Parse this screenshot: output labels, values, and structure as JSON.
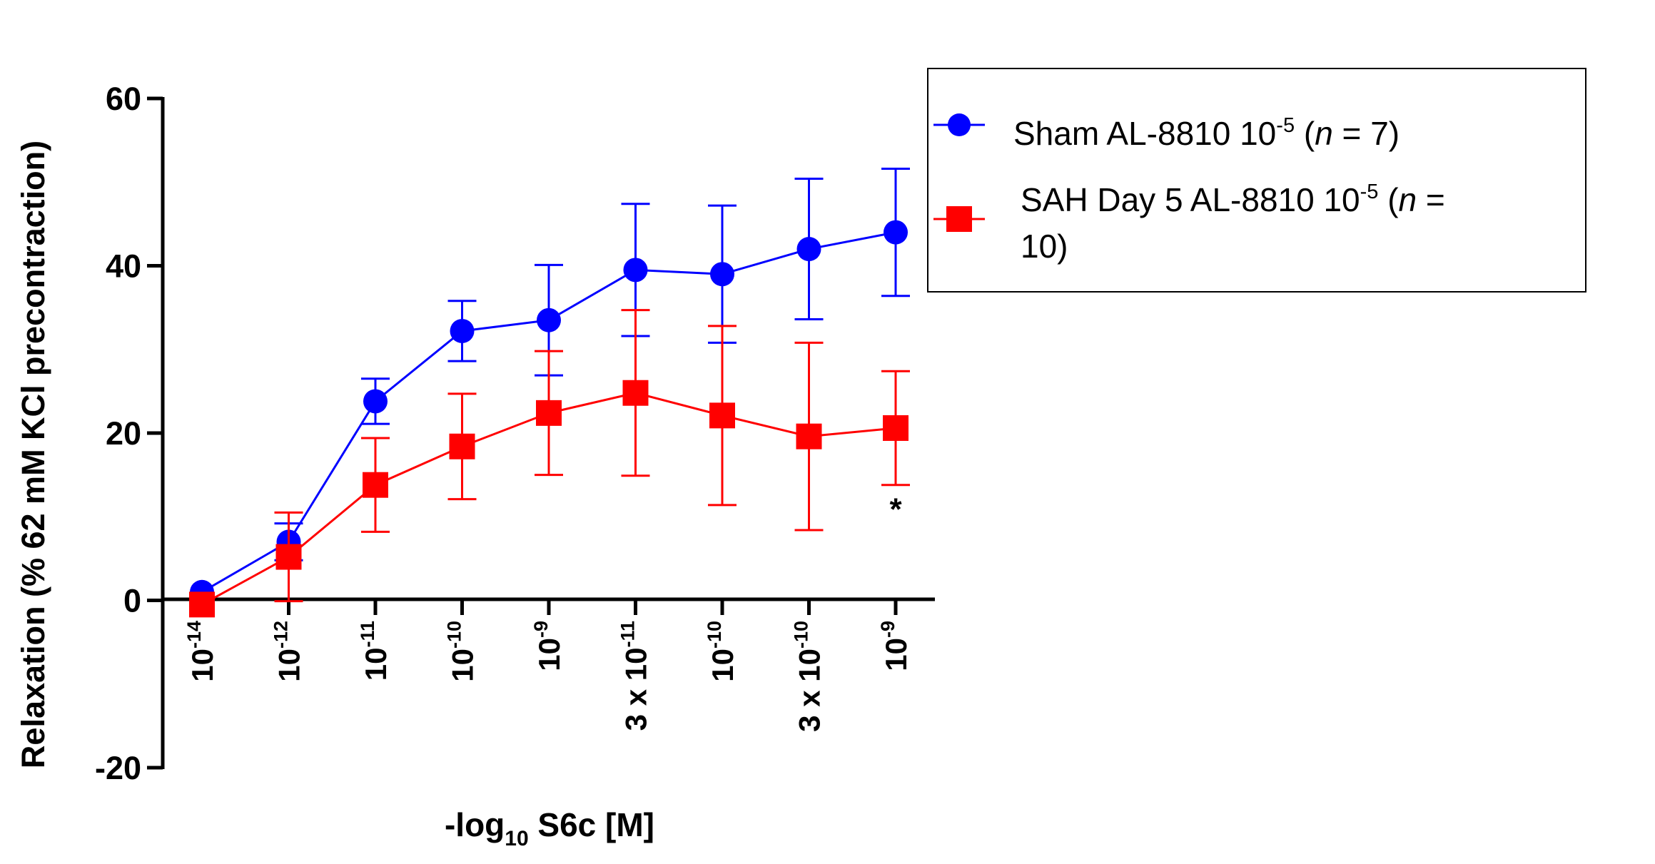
{
  "chart_data": {
    "type": "line",
    "ylabel": "Relaxation (% 62 mM KCl precontraction)",
    "xlabel": {
      "prefix": "-log",
      "sub": "10",
      "suffix": " S6c [M]"
    },
    "ylim": [
      -20,
      60
    ],
    "yticks": [
      -20,
      0,
      20,
      40,
      60
    ],
    "grid": false,
    "legend_position": "top-right",
    "x_tick_labels": [
      {
        "prefix": "",
        "base": "10",
        "exp": "-14"
      },
      {
        "prefix": "",
        "base": "10",
        "exp": "-12"
      },
      {
        "prefix": "",
        "base": "10",
        "exp": "-11"
      },
      {
        "prefix": "",
        "base": "10",
        "exp": "-10"
      },
      {
        "prefix": "",
        "base": "10",
        "exp": "-9"
      },
      {
        "prefix": "3 x ",
        "base": "10",
        "exp": "-11"
      },
      {
        "prefix": "",
        "base": "10",
        "exp": "-10"
      },
      {
        "prefix": "3 x ",
        "base": "10",
        "exp": "-10"
      },
      {
        "prefix": "",
        "base": "10",
        "exp": "-9"
      }
    ],
    "series": [
      {
        "name_parts": {
          "lead": "Sham AL-8810 10",
          "sup": "-5",
          "mid": " (",
          "ital": "n",
          "tail": " = 7)"
        },
        "color": "#0000ff",
        "marker": "circle",
        "values": [
          1.0,
          7.0,
          23.8,
          32.2,
          33.5,
          39.5,
          39.0,
          42.0,
          44.0
        ],
        "error_upper": [
          1.0,
          9.2,
          26.5,
          35.8,
          40.1,
          47.4,
          47.2,
          50.4,
          51.6
        ],
        "error_lower": [
          1.0,
          4.8,
          21.1,
          28.6,
          26.9,
          31.6,
          30.8,
          33.6,
          36.4
        ]
      },
      {
        "name_parts": {
          "lead": "SAH Day 5 AL-8810 10",
          "sup": "-5",
          "mid": " (",
          "ital": "n",
          "tail": " =",
          "line2": "10)"
        },
        "color": "#ff0000",
        "marker": "square",
        "values": [
          -0.5,
          5.2,
          13.8,
          18.4,
          22.4,
          24.8,
          22.1,
          19.6,
          20.6
        ],
        "error_upper": [
          -0.5,
          10.5,
          19.4,
          24.7,
          29.8,
          34.7,
          32.8,
          30.8,
          27.4
        ],
        "error_lower": [
          -0.5,
          -0.1,
          8.2,
          12.1,
          15.0,
          14.9,
          11.4,
          8.4,
          13.8
        ]
      }
    ],
    "annotations": [
      {
        "text": "*",
        "x_index": 8,
        "y": 11
      }
    ]
  }
}
